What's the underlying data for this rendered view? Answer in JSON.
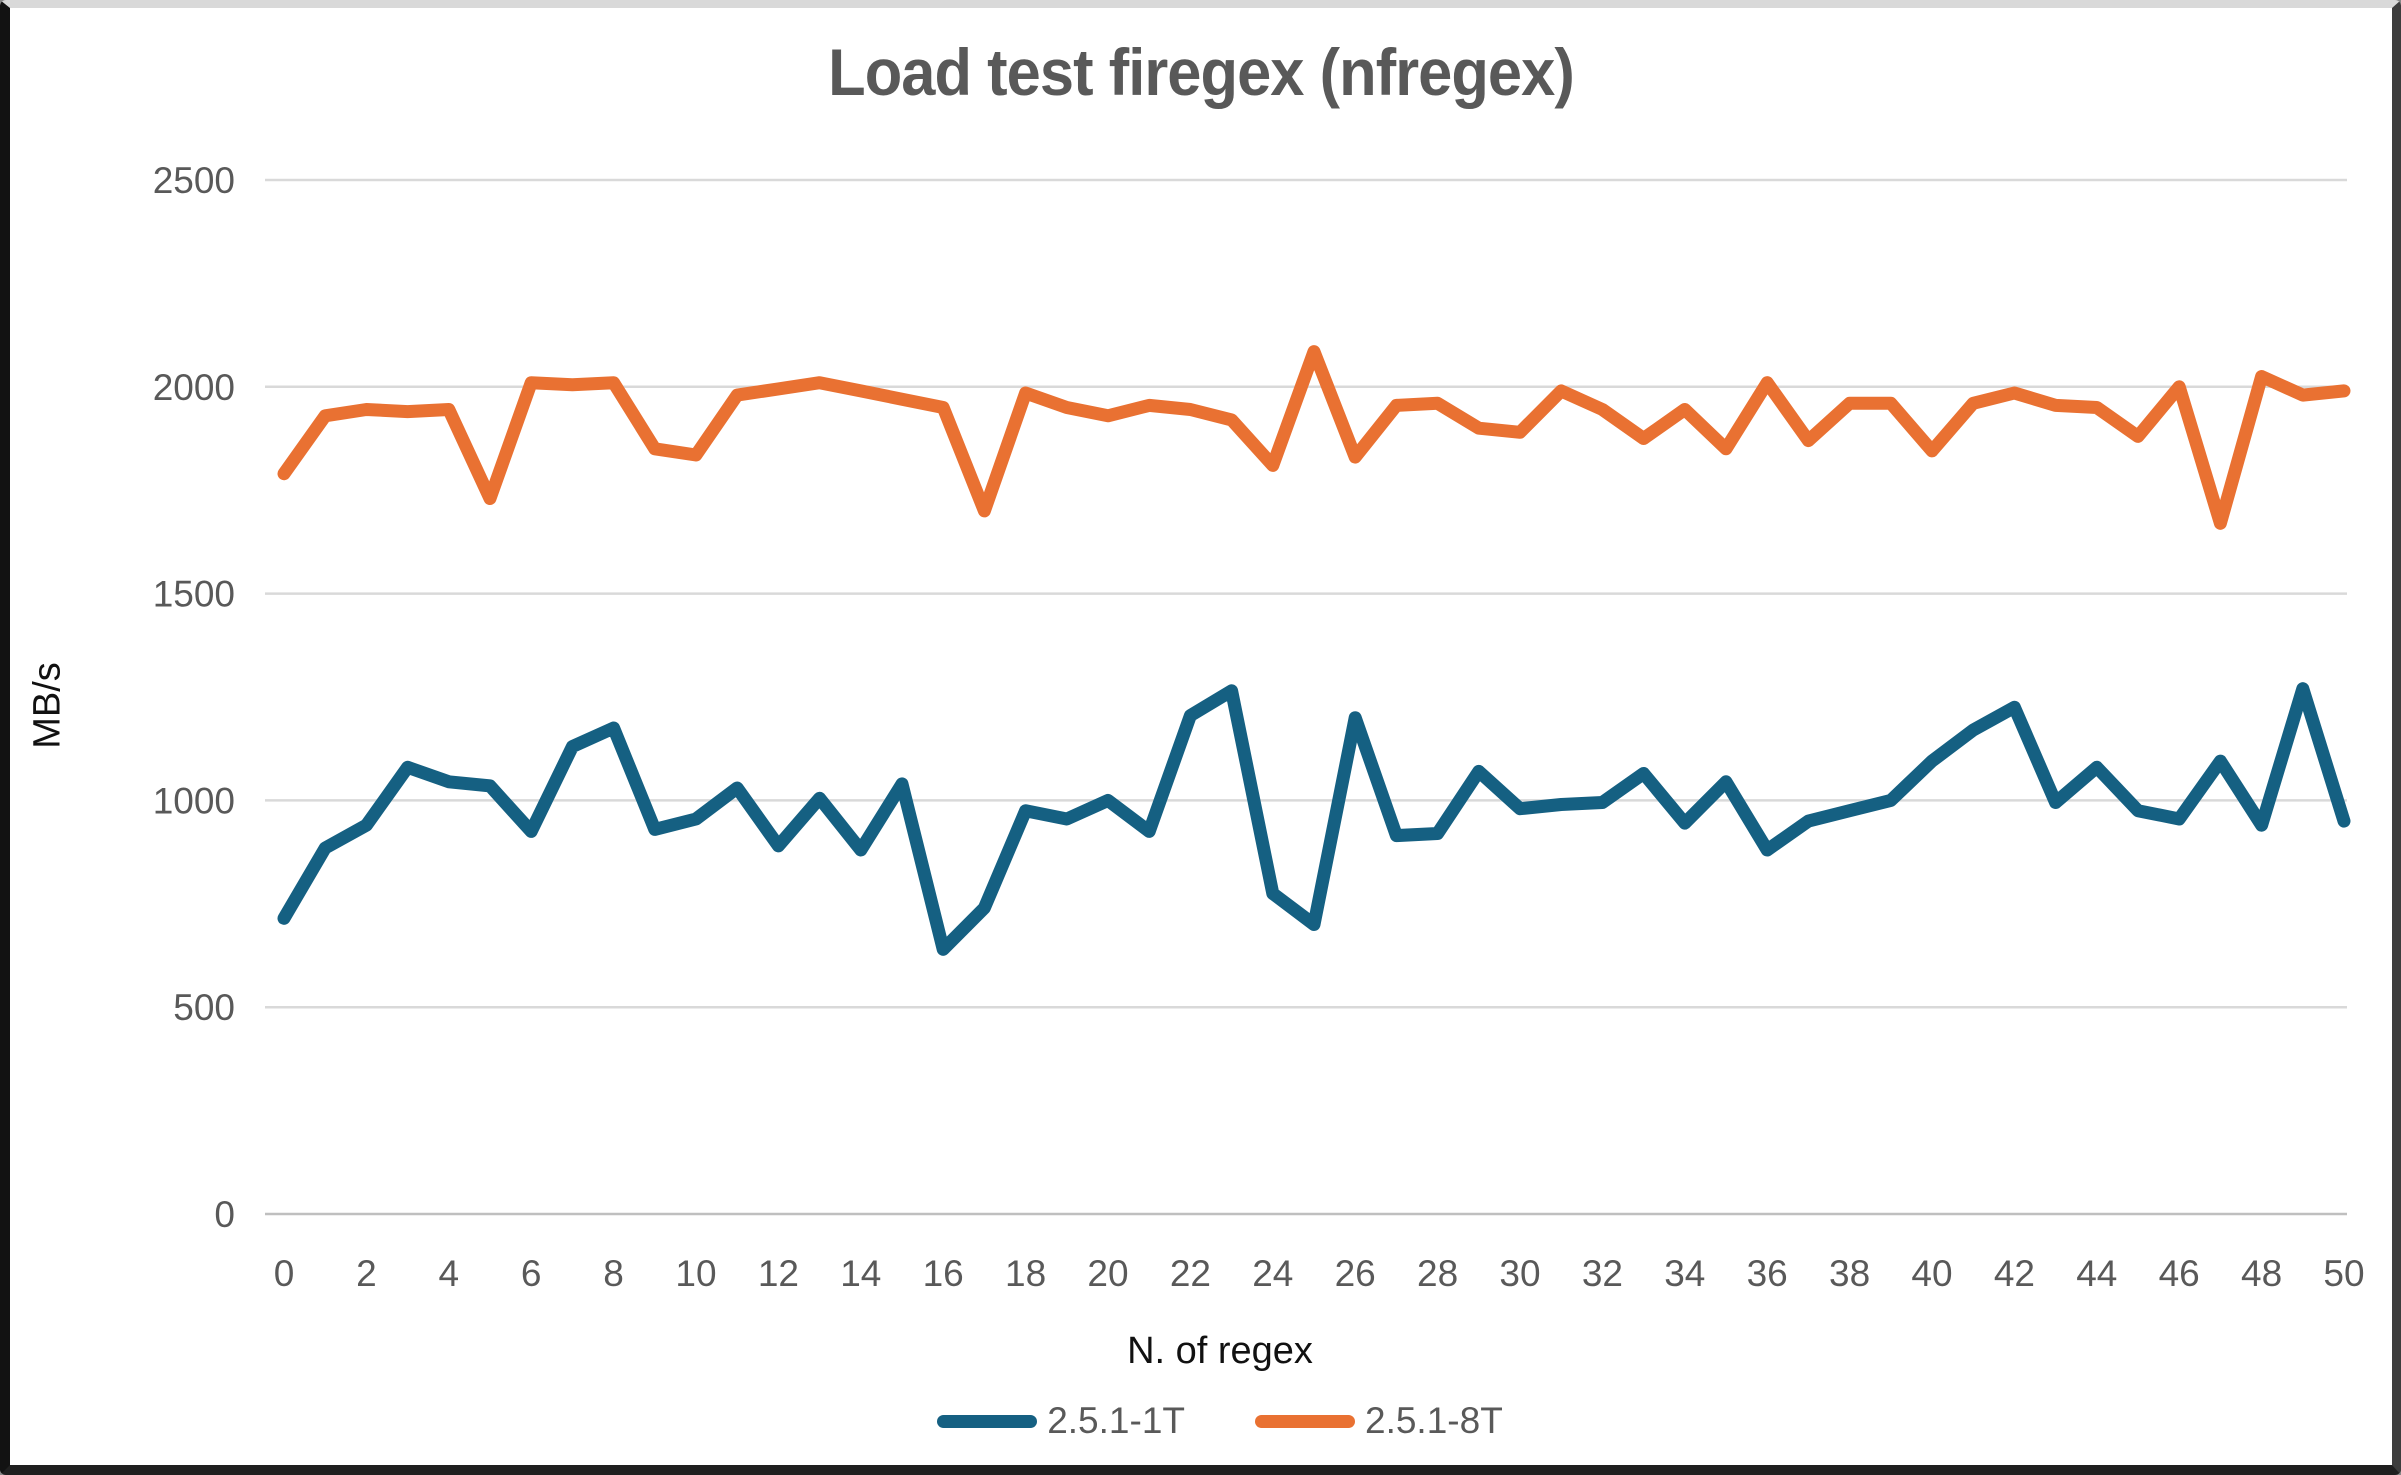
{
  "chart_data": {
    "type": "line",
    "title": "Load test firegex (nfregex)",
    "xlabel": "N. of regex",
    "ylabel": "MB/s",
    "grid": "horizontal-only",
    "legend_position": "bottom-center",
    "xlim": [
      0,
      50
    ],
    "ylim": [
      0,
      2500
    ],
    "xticks": [
      0,
      2,
      4,
      6,
      8,
      10,
      12,
      14,
      16,
      18,
      20,
      22,
      24,
      26,
      28,
      30,
      32,
      34,
      36,
      38,
      40,
      42,
      44,
      46,
      48,
      50
    ],
    "yticks": [
      0,
      500,
      1000,
      1500,
      2000,
      2500
    ],
    "x": [
      0,
      1,
      2,
      3,
      4,
      5,
      6,
      7,
      8,
      9,
      10,
      11,
      12,
      13,
      14,
      15,
      16,
      17,
      18,
      19,
      20,
      21,
      22,
      23,
      24,
      25,
      26,
      27,
      28,
      29,
      30,
      31,
      32,
      33,
      34,
      35,
      36,
      37,
      38,
      39,
      40,
      41,
      42,
      43,
      44,
      45,
      46,
      47,
      48,
      49,
      50
    ],
    "series": [
      {
        "name": "2.5.1-1T",
        "color": "#156082",
        "values": [
          715,
          885,
          940,
          1080,
          1045,
          1035,
          925,
          1130,
          1175,
          930,
          955,
          1030,
          890,
          1005,
          880,
          1040,
          640,
          740,
          975,
          955,
          1000,
          925,
          1205,
          1265,
          775,
          700,
          1200,
          915,
          920,
          1070,
          980,
          990,
          995,
          1065,
          945,
          1045,
          880,
          950,
          975,
          1000,
          1095,
          1170,
          1225,
          995,
          1080,
          975,
          955,
          1095,
          940,
          1270,
          950
        ]
      },
      {
        "name": "2.5.1-8T",
        "color": "#E97132",
        "values": [
          1790,
          1930,
          1945,
          1940,
          1945,
          1730,
          2010,
          2005,
          2010,
          1850,
          1835,
          1980,
          1995,
          2010,
          1990,
          1970,
          1950,
          1700,
          1985,
          1950,
          1930,
          1955,
          1945,
          1920,
          1810,
          2085,
          1830,
          1955,
          1960,
          1900,
          1890,
          1990,
          1945,
          1875,
          1945,
          1850,
          2010,
          1870,
          1960,
          1960,
          1845,
          1960,
          1985,
          1955,
          1950,
          1880,
          2000,
          1670,
          2025,
          1980,
          1990
        ]
      }
    ],
    "colors": {
      "tick_label": "#595959",
      "title_text": "#595959",
      "axis_title_text": "#111111",
      "gridline": "#D9D9D9",
      "axis_line": "#BFBFBF",
      "background": "#FFFFFF"
    }
  }
}
